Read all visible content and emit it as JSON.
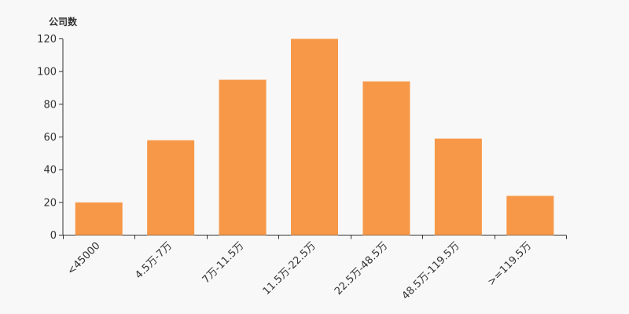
{
  "chart_data": {
    "type": "bar",
    "title": "",
    "xlabel": "",
    "ylabel": "公司数",
    "categories": [
      "<45000",
      "4.5万-7万",
      "7万-11.5万",
      "11.5万-22.5万",
      "22.5万-48.5万",
      "48.5万-119.5万",
      ">=119.5万"
    ],
    "values": [
      20,
      58,
      95,
      120,
      94,
      59,
      24
    ],
    "ylim": [
      0,
      120
    ],
    "yticks": [
      0,
      20,
      40,
      60,
      80,
      100,
      120
    ],
    "grid": false,
    "legend": "none",
    "bar_color": "#f79848",
    "axis_color": "#333333"
  }
}
